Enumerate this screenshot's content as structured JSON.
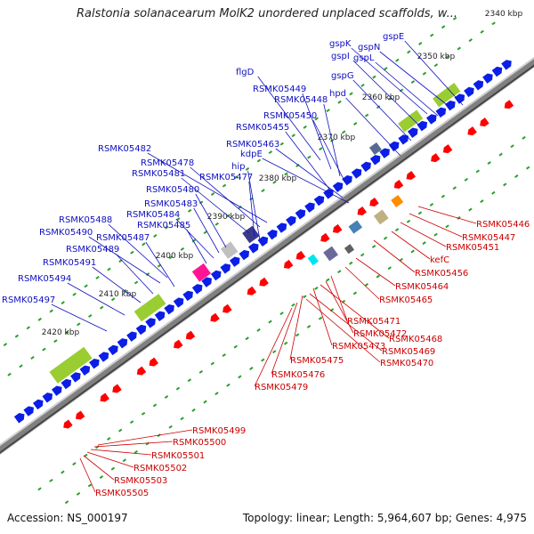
{
  "title": "Ralstonia solanacearum MolK2 unordered unplaced scaffolds, w...",
  "footer": {
    "accession": "Accession: NS_000197",
    "summary": "Topology: linear; Length: 5,964,607 bp; Genes: 4,975"
  },
  "colors": {
    "forward_gene": "#0a1ee6",
    "reverse_gene": "#ff0000",
    "backbone": "#808080",
    "tick": "#2aa02a",
    "forward_label": "#1010c0",
    "reverse_label": "#cc0000"
  },
  "ticks": [
    {
      "label": "2340 kbp"
    },
    {
      "label": "2350 kbp"
    },
    {
      "label": "2360 kbp"
    },
    {
      "label": "2370 kbp"
    },
    {
      "label": "2380 kbp"
    },
    {
      "label": "2390 kbp"
    },
    {
      "label": "2400 kbp"
    },
    {
      "label": "2410 kbp"
    },
    {
      "label": "2420 kbp"
    }
  ],
  "forward_labels": [
    "gspE",
    "gspN",
    "gspK",
    "gspL",
    "gspI",
    "gspG",
    "hpd",
    "flgD",
    "RSMK05449",
    "RSMK05448",
    "RSMK05450",
    "RSMK05455",
    "RSMK05463",
    "kdpE",
    "RSMK05482",
    "RSMK05478",
    "RSMK05481",
    "RSMK05477",
    "hip",
    "RSMK05480",
    "RSMK05483",
    "RSMK05484",
    "RSMK05485",
    "RSMK05488",
    "RSMK05490",
    "RSMK05487",
    "RSMK05489",
    "RSMK05491",
    "RSMK05494",
    "RSMK05497"
  ],
  "reverse_labels": [
    "RSMK05446",
    "RSMK05447",
    "RSMK05451",
    "kefC",
    "RSMK05456",
    "RSMK05464",
    "RSMK05465",
    "RSMK05471",
    "RSMK05472",
    "RSMK05468",
    "RSMK05473",
    "RSMK05469",
    "RSMK05475",
    "RSMK05470",
    "RSMK05476",
    "RSMK05479",
    "RSMK05499",
    "RSMK05500",
    "RSMK05501",
    "RSMK05502",
    "RSMK05503",
    "RSMK05505"
  ]
}
